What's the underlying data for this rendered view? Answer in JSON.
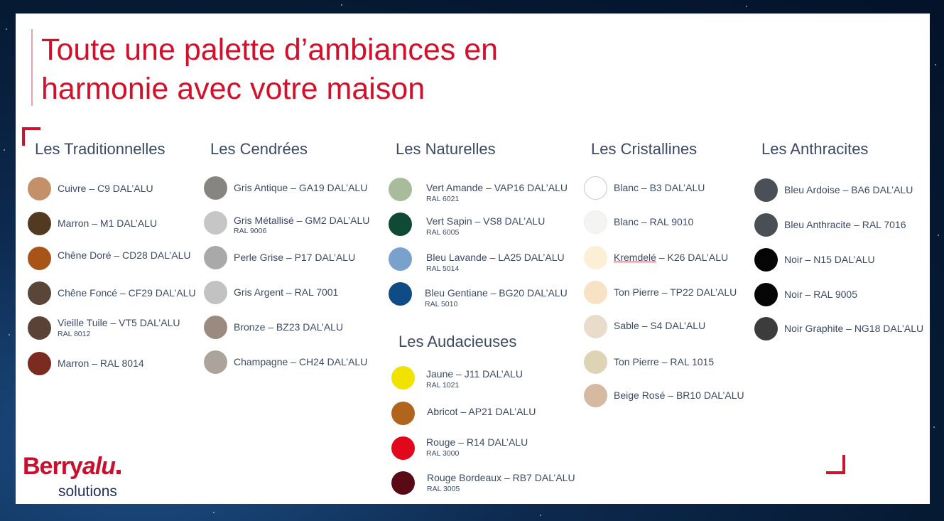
{
  "title_line1": "Toute une palette d’ambiances en",
  "title_line2": "harmonie avec votre maison",
  "logo": {
    "brand_a": "Berry",
    "brand_b": "alu",
    "sub": "solutions"
  },
  "columns": [
    {
      "heading": "Les Traditionnelles",
      "items": [
        {
          "name": "Cuivre – C9 DAL’ALU",
          "ral": "",
          "color": "#c4906a"
        },
        {
          "name": "Marron – M1 DAL’ALU",
          "ral": "",
          "color": "#523a22"
        },
        {
          "name": "Chêne Doré – CD28 DAL’ALU",
          "ral": "",
          "color": "#a85418"
        },
        {
          "name": "Chêne Foncé – CF29 DAL’ALU",
          "ral": "",
          "color": "#5a4638"
        },
        {
          "name": "Vieille Tuile – VT5 DAL’ALU",
          "ral": "RAL 8012",
          "color": "#5a4236"
        },
        {
          "name": "Marron – RAL 8014",
          "ral": "",
          "color": "#7b2b20"
        }
      ]
    },
    {
      "heading": "Les Cendrées",
      "items": [
        {
          "name": "Gris Antique – GA19 DAL’ALU",
          "ral": "",
          "color": "#878581"
        },
        {
          "name": "Gris Métallisé – GM2 DAL’ALU",
          "ral": "RAL 9006",
          "color": "#c6c6c6"
        },
        {
          "name": "Perle Grise – P17 DAL’ALU",
          "ral": "",
          "color": "#a9a9a9"
        },
        {
          "name": "Gris Argent – RAL 7001",
          "ral": "",
          "color": "#c2c2c2"
        },
        {
          "name": "Bronze – BZ23 DAL’ALU",
          "ral": "",
          "color": "#9a8a80"
        },
        {
          "name": "Champagne – CH24 DAL’ALU",
          "ral": "",
          "color": "#aca49a"
        }
      ]
    },
    {
      "heading": "Les Naturelles",
      "items": [
        {
          "name": "Vert Amande – VAP16 DAL’ALU",
          "ral": "RAL 6021",
          "color": "#a8bc9c"
        },
        {
          "name": "Vert Sapin – VS8 DAL’ALU",
          "ral": "RAL 6005",
          "color": "#0e4a34"
        },
        {
          "name": "Bleu Lavande – LA25 DAL’ALU",
          "ral": "RAL 5014",
          "color": "#7aa0cc"
        },
        {
          "name": "Bleu Gentiane – BG20 DAL’ALU",
          "ral": "RAL 5010",
          "color": "#0f4c85"
        }
      ]
    },
    {
      "heading": "Les Audacieuses",
      "items": [
        {
          "name": "Jaune – J11 DAL’ALU",
          "ral": "RAL 1021",
          "color": "#f2e200"
        },
        {
          "name": "Abricot – AP21 DAL’ALU",
          "ral": "",
          "color": "#b0641e"
        },
        {
          "name": "Rouge – R14 DAL’ALU",
          "ral": "RAL 3000",
          "color": "#e2081c"
        },
        {
          "name": "Rouge Bordeaux – RB7 DAL’ALU",
          "ral": "RAL 3005",
          "color": "#5a0a14"
        }
      ]
    },
    {
      "heading": "Les Cristallines",
      "items": [
        {
          "name": "Blanc – B3 DAL’ALU",
          "ral": "",
          "color": "#ffffff"
        },
        {
          "name": "Blanc – RAL 9010",
          "ral": "",
          "color": "#f4f4f2"
        },
        {
          "name_a": "Kremdelé",
          "name_b": " – K26 DAL’ALU",
          "ral": "",
          "color": "#fbf0d6"
        },
        {
          "name": "Ton Pierre – TP22 DAL’ALU",
          "ral": "",
          "color": "#f7e2c6"
        },
        {
          "name": "Sable – S4 DAL’ALU",
          "ral": "",
          "color": "#eadccb"
        },
        {
          "name": "Ton Pierre – RAL 1015",
          "ral": "",
          "color": "#dfd3b6"
        },
        {
          "name": "Beige Rosé – BR10 DAL’ALU",
          "ral": "",
          "color": "#d5b9a1"
        }
      ]
    },
    {
      "heading": "Les Anthracites",
      "items": [
        {
          "name": "Bleu Ardoise – BA6 DAL’ALU",
          "ral": "",
          "color": "#4b5058"
        },
        {
          "name": "Bleu Anthracite – RAL 7016",
          "ral": "",
          "color": "#4a4f56"
        },
        {
          "name": "Noir – N15 DAL’ALU",
          "ral": "",
          "color": "#050505"
        },
        {
          "name": "Noir – RAL 9005",
          "ral": "",
          "color": "#050505"
        },
        {
          "name": "Noir Graphite – NG18 DAL’ALU",
          "ral": "",
          "color": "#3c3c3c"
        }
      ]
    }
  ]
}
